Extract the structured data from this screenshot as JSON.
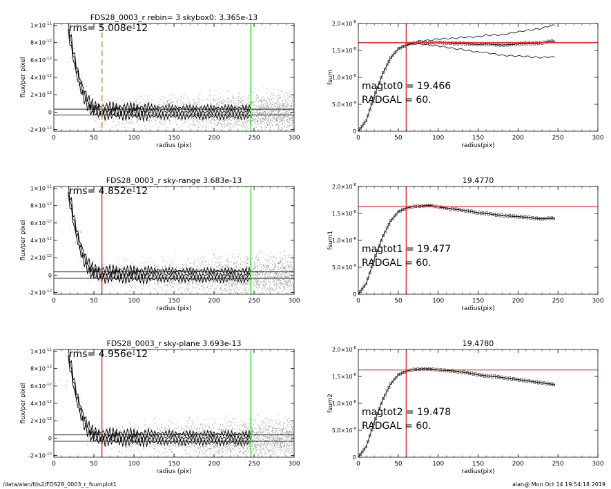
{
  "footer": {
    "path": "/data/alan/fds2/FDS28_0003_r_fsumplot1",
    "stamp": "alan@  Mon Oct 14 19:54:18 2019"
  },
  "colors": {
    "red": "#e8322e",
    "green": "#2ee82e",
    "orange": "#f0a050",
    "points": "#8a8a8a",
    "fsum_marker": "#222222"
  },
  "chart_data": [
    {
      "type": "scatter",
      "title": "FDS28_0003_r rebin= 3    skybox0:  3.365e-13",
      "xlabel": "radius (pix)",
      "ylabel": "flux/per pixel",
      "xlim": [
        0,
        300
      ],
      "ylim": [
        -2.2e-12,
        1.02e-11
      ],
      "xticks": [
        0,
        50,
        100,
        150,
        200,
        250,
        300
      ],
      "yticks": [
        -2e-12,
        0,
        2e-12,
        4e-12,
        6e-12,
        8e-12,
        1e-11
      ],
      "ytick_labels": [
        [
          "-2×10",
          "-12"
        ],
        [
          "0",
          ""
        ],
        [
          "2×10",
          "-12"
        ],
        [
          "4×10",
          "-12"
        ],
        [
          "6×10",
          "-12"
        ],
        [
          "8×10",
          "-12"
        ],
        [
          "1×10",
          "-11"
        ]
      ],
      "annotation": "rms= 5.008e-12",
      "vlines": [
        {
          "x": 60,
          "color": "orange",
          "dashed": true
        },
        {
          "x": 246,
          "color": "green",
          "dashed": false
        }
      ],
      "hlines": [
        3.365e-13,
        -3.365e-13
      ],
      "profile": {
        "x": [
          18,
          22,
          26,
          30,
          34,
          38,
          42,
          46,
          50,
          55,
          60,
          65,
          70,
          80,
          90,
          100,
          120,
          140,
          160,
          180,
          200,
          220,
          246
        ],
        "y": [
          9.5e-12,
          7.8e-12,
          5.8e-12,
          4.2e-12,
          3e-12,
          2e-12,
          1.2e-12,
          6e-13,
          3e-13,
          2e-13,
          2e-13,
          1e-13,
          1.5e-13,
          1e-13,
          1e-13,
          5e-14,
          5e-14,
          5e-14,
          0,
          0,
          0,
          0,
          0
        ],
        "spread": 5e-13
      }
    },
    {
      "type": "line",
      "title": "",
      "xlabel": "radius(pix)",
      "ylabel": "fsum",
      "xlim": [
        0,
        300
      ],
      "ylim": [
        0,
        2e-08
      ],
      "xticks": [
        0,
        50,
        100,
        150,
        200,
        250,
        300
      ],
      "yticks": [
        0,
        5e-09,
        1e-08,
        1.5e-08,
        2e-08
      ],
      "ytick_labels": [
        [
          "0",
          ""
        ],
        [
          "5.0×10",
          "-9"
        ],
        [
          "1.0×10",
          "-8"
        ],
        [
          "1.5×10",
          "-8"
        ],
        [
          "2.0×10",
          "-8"
        ]
      ],
      "annotation_lines": [
        "magtot0 =  19.466",
        "RADGAL =     60."
      ],
      "vline": 60,
      "hline": 1.645e-08,
      "curve": {
        "x": [
          0,
          10,
          20,
          30,
          40,
          50,
          60,
          70,
          80,
          90,
          100,
          110,
          120,
          130,
          140,
          150,
          160,
          170,
          180,
          190,
          200,
          210,
          220,
          230,
          240,
          246
        ],
        "y": [
          0,
          2e-09,
          6.5e-09,
          1.05e-08,
          1.35e-08,
          1.53e-08,
          1.6e-08,
          1.64e-08,
          1.65e-08,
          1.64e-08,
          1.65e-08,
          1.64e-08,
          1.63e-08,
          1.63e-08,
          1.62e-08,
          1.61e-08,
          1.62e-08,
          1.61e-08,
          1.6e-08,
          1.61e-08,
          1.62e-08,
          1.63e-08,
          1.63e-08,
          1.64e-08,
          1.67e-08,
          1.67e-08
        ]
      },
      "envelope_from": 60,
      "envelope_growth": 1.6e-11
    },
    {
      "type": "scatter",
      "title": "FDS28_0003_r sky-range  3.683e-13",
      "xlabel": "radius (pix)",
      "ylabel": "flux/per pixel",
      "xlim": [
        0,
        300
      ],
      "ylim": [
        -2.2e-12,
        1.02e-11
      ],
      "xticks": [
        0,
        50,
        100,
        150,
        200,
        250,
        300
      ],
      "yticks": [
        -2e-12,
        0,
        2e-12,
        4e-12,
        6e-12,
        8e-12,
        1e-11
      ],
      "ytick_labels": [
        [
          "-2×10",
          "-12"
        ],
        [
          "0",
          ""
        ],
        [
          "2×10",
          "-12"
        ],
        [
          "4×10",
          "-12"
        ],
        [
          "6×10",
          "-12"
        ],
        [
          "8×10",
          "-12"
        ],
        [
          "1×10",
          "-11"
        ]
      ],
      "annotation": "rms= 4.852e-12",
      "vlines": [
        {
          "x": 60,
          "color": "red",
          "dashed": false
        },
        {
          "x": 246,
          "color": "green",
          "dashed": false
        }
      ],
      "hlines": [
        3.683e-13,
        -3.683e-13
      ],
      "profile": {
        "x": [
          18,
          22,
          26,
          30,
          34,
          38,
          42,
          46,
          50,
          55,
          60,
          65,
          70,
          80,
          90,
          100,
          120,
          140,
          160,
          180,
          200,
          220,
          246
        ],
        "y": [
          9.5e-12,
          7.8e-12,
          5.8e-12,
          4.2e-12,
          3e-12,
          2e-12,
          1.2e-12,
          6e-13,
          3e-13,
          2e-13,
          2e-13,
          1e-13,
          1.5e-13,
          1e-13,
          1e-13,
          5e-14,
          5e-14,
          5e-14,
          0,
          0,
          0,
          0,
          0
        ],
        "spread": 5e-13
      }
    },
    {
      "type": "line",
      "title": "19.4770",
      "xlabel": "radius(pix)",
      "ylabel": "fsum1",
      "xlim": [
        0,
        300
      ],
      "ylim": [
        0,
        2e-08
      ],
      "xticks": [
        0,
        50,
        100,
        150,
        200,
        250,
        300
      ],
      "yticks": [
        0,
        5e-09,
        1e-08,
        1.5e-08,
        2e-08
      ],
      "ytick_labels": [
        [
          "0",
          ""
        ],
        [
          "5.0×10",
          "-9"
        ],
        [
          "1.0×10",
          "-8"
        ],
        [
          "1.5×10",
          "-8"
        ],
        [
          "2.0×10",
          "-8"
        ]
      ],
      "annotation_lines": [
        "magtot1 =  19.477",
        "RADGAL =     60."
      ],
      "vline": 60,
      "hline": 1.625e-08,
      "curve": {
        "x": [
          0,
          10,
          20,
          30,
          40,
          50,
          60,
          70,
          80,
          90,
          100,
          110,
          120,
          130,
          140,
          150,
          160,
          170,
          180,
          190,
          200,
          210,
          220,
          230,
          240,
          246
        ],
        "y": [
          0,
          2e-09,
          6.5e-09,
          1.05e-08,
          1.35e-08,
          1.53e-08,
          1.6e-08,
          1.63e-08,
          1.64e-08,
          1.65e-08,
          1.62e-08,
          1.6e-08,
          1.58e-08,
          1.56e-08,
          1.54e-08,
          1.51e-08,
          1.5e-08,
          1.48e-08,
          1.46e-08,
          1.45e-08,
          1.44e-08,
          1.43e-08,
          1.41e-08,
          1.4e-08,
          1.41e-08,
          1.41e-08
        ]
      }
    },
    {
      "type": "scatter",
      "title": "FDS28_0003_r sky-plane  3.693e-13",
      "xlabel": "radius (pix)",
      "ylabel": "flux/per pixel",
      "xlim": [
        0,
        300
      ],
      "ylim": [
        -2.2e-12,
        1.02e-11
      ],
      "xticks": [
        0,
        50,
        100,
        150,
        200,
        250,
        300
      ],
      "yticks": [
        -2e-12,
        0,
        2e-12,
        4e-12,
        6e-12,
        8e-12,
        1e-11
      ],
      "ytick_labels": [
        [
          "-2×10",
          "-12"
        ],
        [
          "0",
          ""
        ],
        [
          "2×10",
          "-12"
        ],
        [
          "4×10",
          "-12"
        ],
        [
          "6×10",
          "-12"
        ],
        [
          "8×10",
          "-12"
        ],
        [
          "1×10",
          "-11"
        ]
      ],
      "annotation": "rms= 4.956e-12",
      "vlines": [
        {
          "x": 60,
          "color": "red",
          "dashed": false
        },
        {
          "x": 246,
          "color": "green",
          "dashed": false
        }
      ],
      "hlines": [
        3.693e-13,
        -3.693e-13
      ],
      "profile": {
        "x": [
          18,
          22,
          26,
          30,
          34,
          38,
          42,
          46,
          50,
          55,
          60,
          65,
          70,
          80,
          90,
          100,
          120,
          140,
          160,
          180,
          200,
          220,
          246
        ],
        "y": [
          9.5e-12,
          7.8e-12,
          5.8e-12,
          4.2e-12,
          3e-12,
          2e-12,
          1.2e-12,
          6e-13,
          3e-13,
          2e-13,
          2e-13,
          1e-13,
          1.5e-13,
          1e-13,
          1e-13,
          5e-14,
          5e-14,
          5e-14,
          0,
          0,
          0,
          0,
          0
        ],
        "spread": 5e-13
      }
    },
    {
      "type": "line",
      "title": "19.4780",
      "xlabel": "radius(pix)",
      "ylabel": "fsum2",
      "xlim": [
        0,
        300
      ],
      "ylim": [
        0,
        2e-08
      ],
      "xticks": [
        0,
        50,
        100,
        150,
        200,
        250,
        300
      ],
      "yticks": [
        0,
        5e-09,
        1e-08,
        1.5e-08,
        2e-08
      ],
      "ytick_labels": [
        [
          "0",
          ""
        ],
        [
          "5.0×10",
          "-9"
        ],
        [
          "1.0×10",
          "-8"
        ],
        [
          "1.5×10",
          "-8"
        ],
        [
          "2.0×10",
          "-8"
        ]
      ],
      "annotation_lines": [
        "magtot2 =  19.478",
        "RADGAL =     60."
      ],
      "vline": 60,
      "hline": 1.62e-08,
      "curve": {
        "x": [
          0,
          10,
          20,
          30,
          40,
          50,
          60,
          70,
          80,
          90,
          100,
          110,
          120,
          130,
          140,
          150,
          160,
          170,
          180,
          190,
          200,
          210,
          220,
          230,
          240,
          246
        ],
        "y": [
          0,
          2e-09,
          6.5e-09,
          1.05e-08,
          1.35e-08,
          1.53e-08,
          1.6e-08,
          1.63e-08,
          1.64e-08,
          1.64e-08,
          1.62e-08,
          1.61e-08,
          1.6e-08,
          1.58e-08,
          1.56e-08,
          1.53e-08,
          1.51e-08,
          1.5e-08,
          1.48e-08,
          1.46e-08,
          1.44e-08,
          1.42e-08,
          1.4e-08,
          1.38e-08,
          1.36e-08,
          1.35e-08
        ]
      }
    }
  ]
}
